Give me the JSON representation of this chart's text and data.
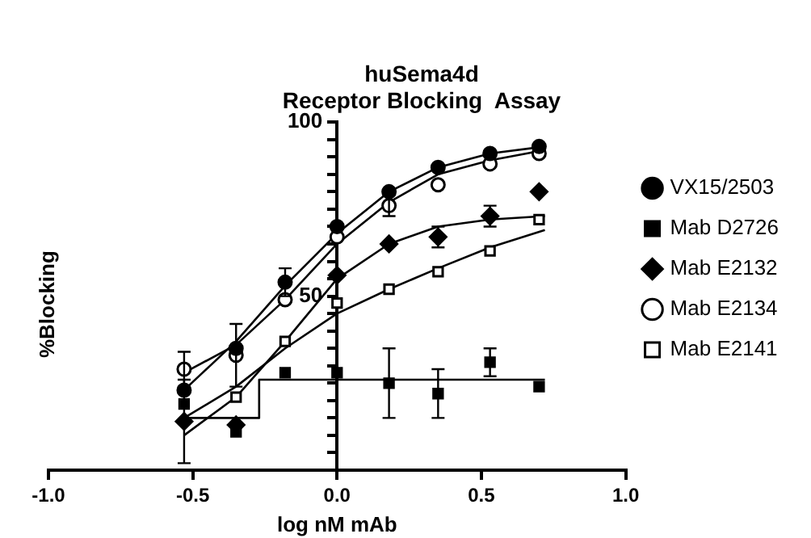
{
  "chart_data": {
    "type": "scatter",
    "title": "huSema4d\nReceptor Blocking  Assay",
    "xlabel": "log nM mAb",
    "ylabel": "%Blocking",
    "xlim": [
      -1.0,
      1.0
    ],
    "xticks": [
      {
        "value": -1,
        "label": "-1.0"
      },
      {
        "value": -0.5,
        "label": "-0.5"
      },
      {
        "value": 0,
        "label": "0.0"
      },
      {
        "value": 0.5,
        "label": "0.5"
      },
      {
        "value": 1,
        "label": "1.0"
      }
    ],
    "ylim": [
      0,
      100
    ],
    "yticks": [
      {
        "value": 0,
        "label": null
      },
      {
        "value": 5,
        "label": null
      },
      {
        "value": 10,
        "label": null
      },
      {
        "value": 15,
        "label": null
      },
      {
        "value": 20,
        "label": null
      },
      {
        "value": 25,
        "label": null
      },
      {
        "value": 30,
        "label": null
      },
      {
        "value": 35,
        "label": null
      },
      {
        "value": 40,
        "label": null
      },
      {
        "value": 45,
        "label": null
      },
      50,
      {
        "value": 55,
        "label": null
      },
      {
        "value": 60,
        "label": null
      },
      {
        "value": 65,
        "label": null
      },
      {
        "value": 70,
        "label": null
      },
      {
        "value": 75,
        "label": null
      },
      {
        "value": 80,
        "label": null
      },
      {
        "value": 85,
        "label": null
      },
      {
        "value": 90,
        "label": null
      },
      {
        "value": 95,
        "label": null
      },
      100
    ],
    "grid": false,
    "legend": "right",
    "x": [
      -0.53,
      -0.35,
      -0.18,
      0,
      0.18,
      0.35,
      0.53,
      0.7
    ],
    "series": [
      {
        "type": "line",
        "x": [
          -0.53,
          -0.35,
          -0.18,
          0,
          0.18,
          0.35,
          0.53,
          0.72
        ],
        "values": [
          23,
          37,
          53,
          68,
          80,
          87,
          91,
          93
        ],
        "color": "#000000",
        "marker": "none"
      },
      {
        "type": "line",
        "x": [
          -0.53,
          -0.27,
          -0.27,
          0.72
        ],
        "values": [
          15,
          15,
          26,
          26
        ],
        "color": "#000000",
        "marker": "none"
      },
      {
        "type": "line",
        "x": [
          -0.53,
          -0.35,
          -0.18,
          0,
          0.18,
          0.35,
          0.53,
          0.72
        ],
        "values": [
          10,
          21,
          37,
          55,
          65,
          70,
          72,
          73
        ],
        "color": "#000000",
        "marker": "none"
      },
      {
        "type": "line",
        "x": [
          -0.53,
          -0.35,
          -0.18,
          0,
          0.18,
          0.35,
          0.53,
          0.72
        ],
        "values": [
          28,
          36,
          49,
          65,
          77,
          85,
          89,
          92
        ],
        "color": "#000000",
        "marker": "none"
      },
      {
        "type": "line",
        "x": [
          -0.53,
          -0.35,
          -0.18,
          0,
          0.18,
          0.35,
          0.53,
          0.72
        ],
        "values": [
          15,
          24,
          35,
          45,
          52,
          58,
          64,
          69
        ],
        "color": "#000000",
        "marker": "none"
      },
      {
        "name": "VX15/2503",
        "color": "#000000",
        "marker": "circle",
        "values": [
          23,
          35,
          54,
          70,
          80,
          87,
          91,
          93
        ],
        "errors": [
          null,
          null,
          4,
          null,
          null,
          null,
          null,
          null
        ]
      },
      {
        "name": "Mab D2726",
        "color": "#000000",
        "marker": "square",
        "values": [
          19,
          11,
          28,
          28,
          25,
          22,
          31,
          24
        ],
        "errors": [
          null,
          null,
          null,
          null,
          10,
          7,
          4,
          null
        ]
      },
      {
        "name": "Mab E2132",
        "color": "#000000",
        "marker": "diamond",
        "values": [
          14,
          13,
          null,
          56,
          65,
          67,
          73,
          80
        ],
        "errors": [
          12,
          null,
          null,
          null,
          null,
          3,
          3,
          null
        ]
      },
      {
        "name": "Mab E2134",
        "color": "#ffffff",
        "marker": "circle",
        "values": [
          29,
          33,
          49,
          67,
          76,
          82,
          88,
          91
        ],
        "errors": [
          5,
          9,
          null,
          null,
          3,
          null,
          null,
          null
        ]
      },
      {
        "name": "Mab E2141",
        "color": "#ffffff",
        "marker": "square",
        "values": [
          null,
          21,
          37,
          48,
          52,
          57,
          63,
          72
        ],
        "errors": [
          null,
          null,
          null,
          null,
          null,
          null,
          null,
          null
        ]
      }
    ]
  }
}
